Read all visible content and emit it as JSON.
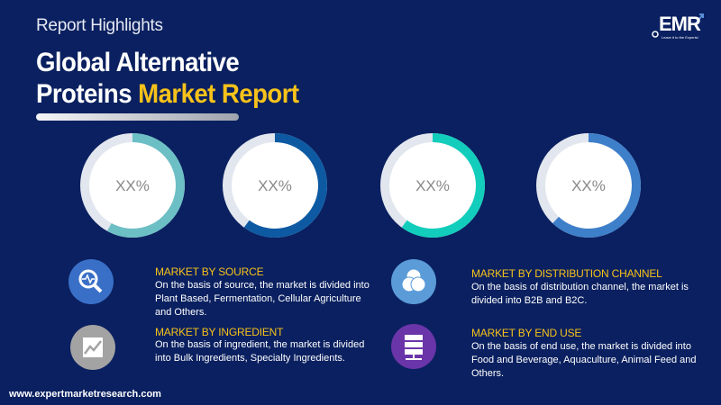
{
  "header": {
    "subtitle": "Report Highlights",
    "title_line1": "Global Alternative",
    "title_line2_white": "Proteins",
    "title_line2_highlight": "Market Report"
  },
  "logo": {
    "text": "EMR",
    "tagline": "Leave it to the Experts!"
  },
  "rings": [
    {
      "label": "XX%",
      "fraction": 0.58,
      "color": "#6cbfc4"
    },
    {
      "label": "XX%",
      "fraction": 0.6,
      "color": "#0d5aa3"
    },
    {
      "label": "XX%",
      "fraction": 0.6,
      "color": "#12cdbb"
    },
    {
      "label": "XX%",
      "fraction": 0.62,
      "color": "#3e7fca"
    }
  ],
  "track_color": "#e2e6ee",
  "sections": [
    {
      "heading": "MARKET BY SOURCE",
      "text": "On the basis of source, the market is divided into Plant Based, Fermentation, Cellular Agriculture and Others.",
      "icon": "magnifier-chart-icon",
      "color": "#3a6fc7"
    },
    {
      "heading": "MARKET BY INGREDIENT",
      "text": "On the basis of ingredient, the market is divided into Bulk Ingredients, Specialty Ingredients.",
      "icon": "line-chart-icon",
      "color": "#a3a3a3"
    },
    {
      "heading": "MARKET BY DISTRIBUTION CHANNEL",
      "text": "On the basis of distribution channel, the market is divided into B2B and B2C.",
      "icon": "venn-diagram-icon",
      "color": "#5a9bd8"
    },
    {
      "heading": "MARKET BY END USE",
      "text": "On the basis of end use, the market is divided into Food and Beverage, Aquaculture, Animal Feed and Others.",
      "icon": "server-icon",
      "color": "#6a35a8"
    }
  ],
  "footer": {
    "url": "www.expertmarketresearch.com"
  }
}
